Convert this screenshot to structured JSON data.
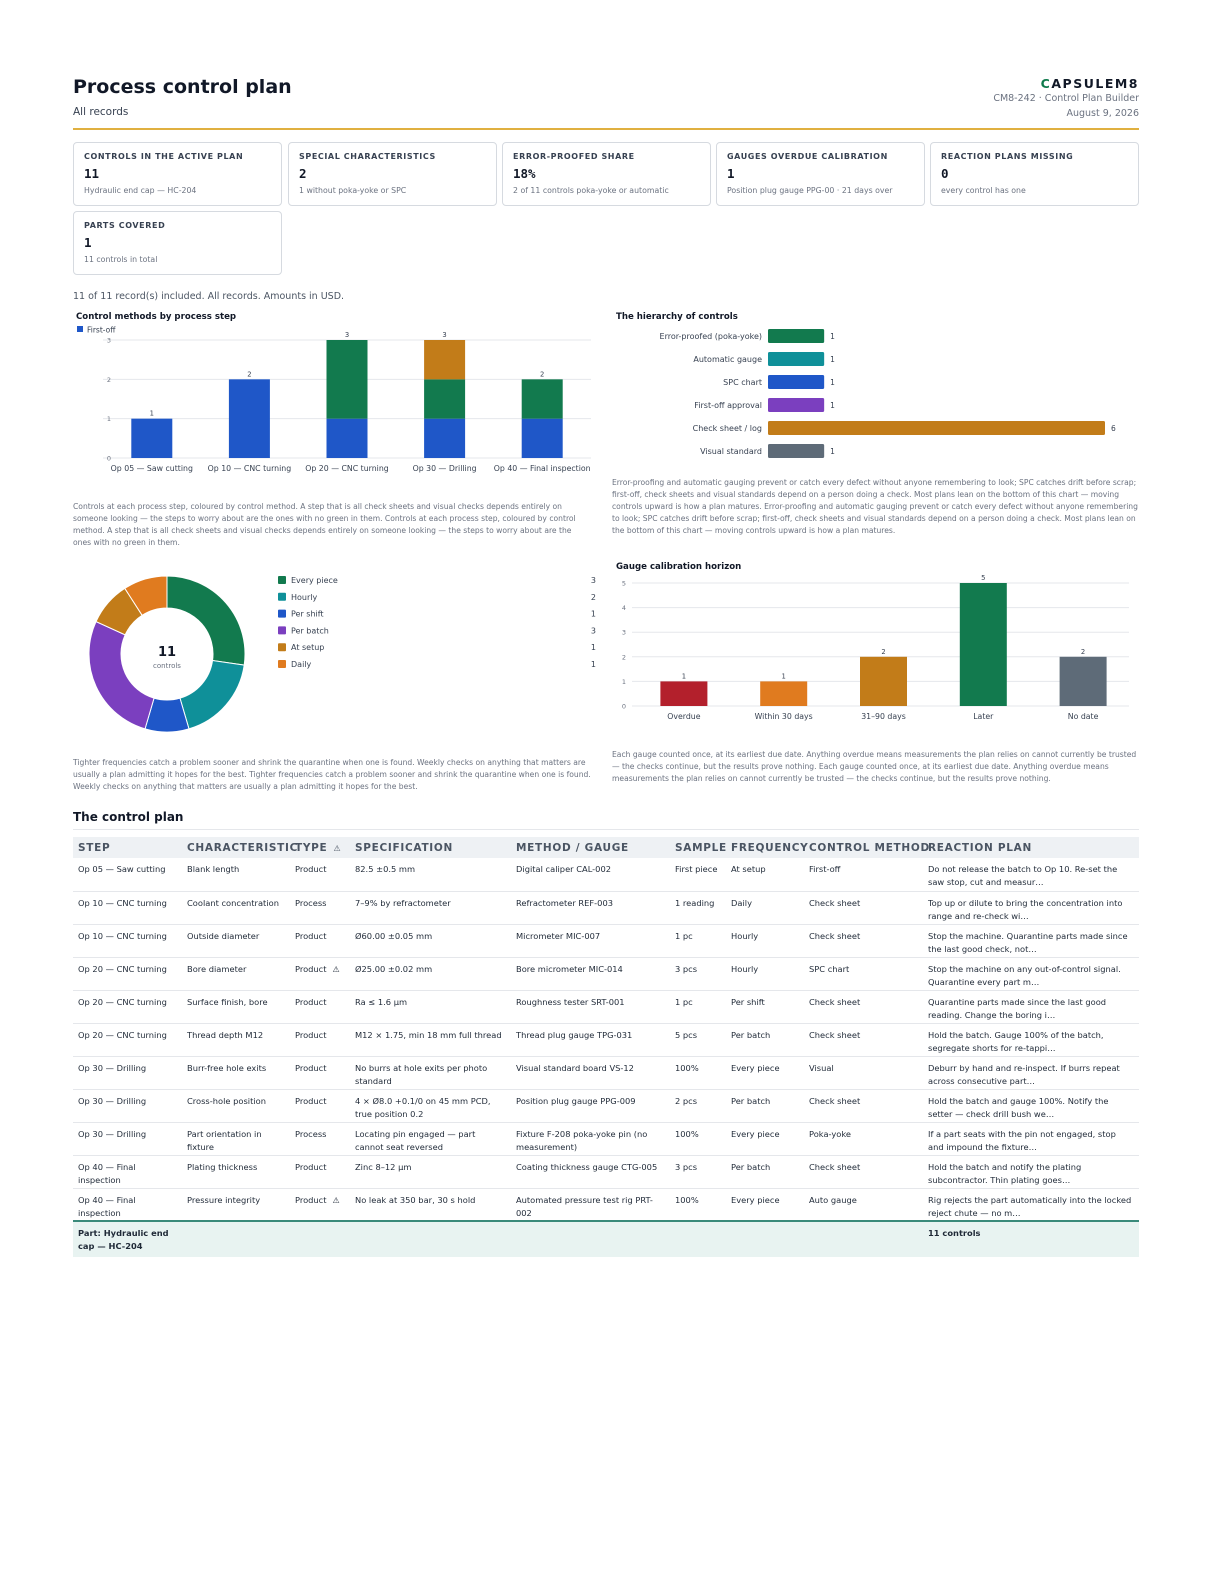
{
  "header": {
    "title": "Process control plan",
    "subtitle": "All records",
    "brand_prefix": "C",
    "brand_rest": "APSULEM8",
    "doc_ref": "CM8-242 · Control Plan Builder",
    "date": "August 9, 2026"
  },
  "kpis": [
    {
      "label": "CONTROLS IN THE ACTIVE PLAN",
      "value": "11",
      "note": "Hydraulic end cap — HC-204"
    },
    {
      "label": "SPECIAL CHARACTERISTICS",
      "value": "2",
      "note": "1 without poka-yoke or SPC"
    },
    {
      "label": "ERROR-PROOFED SHARE",
      "value": "18%",
      "note": "2 of 11 controls poka-yoke or automatic"
    },
    {
      "label": "GAUGES OVERDUE CALIBRATION",
      "value": "1",
      "note": "Position plug gauge PPG-00 · 21 days over"
    },
    {
      "label": "REACTION PLANS MISSING",
      "value": "0",
      "note": "every control has one"
    },
    {
      "label": "PARTS COVERED",
      "value": "1",
      "note": "11 controls in total"
    }
  ],
  "included_text": "11 of 11 record(s) included. All records. Amounts in USD.",
  "chart_data": [
    {
      "type": "bar",
      "stacked": true,
      "title": "Control methods by process step",
      "legend": "top-left",
      "categories": [
        "Op 05 — Saw cutting",
        "Op 10 — CNC turning",
        "Op 20 — CNC turning",
        "Op 30 — Drilling",
        "Op 40 — Final inspection"
      ],
      "series": [
        {
          "name": "First-off",
          "color": "#1f57c8",
          "values": [
            1,
            2,
            1,
            1,
            1
          ]
        },
        {
          "color": "#127a4e",
          "values": [
            0,
            0,
            2,
            1,
            1
          ]
        },
        {
          "color": "#c27c19",
          "values": [
            0,
            0,
            0,
            1,
            0
          ]
        }
      ],
      "totals": [
        1,
        2,
        3,
        3,
        2
      ],
      "yticks": [
        0,
        1,
        2,
        3
      ],
      "ylim": [
        0,
        3
      ],
      "grid": true
    },
    {
      "type": "bar",
      "orientation": "horizontal",
      "title": "The hierarchy of controls",
      "categories": [
        "Error-proofed (poka-yoke)",
        "Automatic gauge",
        "SPC chart",
        "First-off approval",
        "Check sheet / log",
        "Visual standard"
      ],
      "values": [
        1,
        1,
        1,
        1,
        6,
        1
      ],
      "colors": [
        "#127a4e",
        "#0f9099",
        "#1f57c8",
        "#7b3fbf",
        "#c27c19",
        "#5e6b78"
      ]
    },
    {
      "type": "pie",
      "donut": true,
      "center_value": "11",
      "center_label": "controls",
      "legend": "right",
      "labels": [
        "Every piece",
        "Hourly",
        "Per shift",
        "Per batch",
        "At setup",
        "Daily"
      ],
      "values": [
        3,
        2,
        1,
        3,
        1,
        1
      ],
      "colors": [
        "#127a4e",
        "#0f9099",
        "#1f57c8",
        "#7b3fbf",
        "#c27c19",
        "#e07b1f"
      ]
    },
    {
      "type": "bar",
      "title": "Gauge calibration horizon",
      "categories": [
        "Overdue",
        "Within 30 days",
        "31–90 days",
        "Later",
        "No date"
      ],
      "values": [
        1,
        1,
        2,
        5,
        2
      ],
      "colors": [
        "#b3202c",
        "#e07b1f",
        "#c27c19",
        "#127a4e",
        "#5e6b78"
      ],
      "yticks": [
        0,
        1,
        2,
        3,
        4,
        5
      ],
      "ylim": [
        0,
        5
      ],
      "grid": true
    }
  ],
  "notes": {
    "methods": "Controls at each process step, coloured by control method. A step that is all check sheets and visual checks depends entirely on someone looking — the steps to worry about are the ones with no green in them. Controls at each process step, coloured by control method. A step that is all check sheets and visual checks depends entirely on someone looking — the steps to worry about are the ones with no green in them.",
    "hierarchy": "Error-proofing and automatic gauging prevent or catch every defect without anyone remembering to look; SPC catches drift before scrap; first-off, check sheets and visual standards depend on a person doing a check. Most plans lean on the bottom of this chart — moving controls upward is how a plan matures. Error-proofing and automatic gauging prevent or catch every defect without anyone remembering to look; SPC catches drift before scrap; first-off, check sheets and visual standards depend on a person doing a check. Most plans lean on the bottom of this chart — moving controls upward is how a plan matures.",
    "frequency": "Tighter frequencies catch a problem sooner and shrink the quarantine when one is found. Weekly checks on anything that matters are usually a plan admitting it hopes for the best. Tighter frequencies catch a problem sooner and shrink the quarantine when one is found. Weekly checks on anything that matters are usually a plan admitting it hopes for the best.",
    "calibration": "Each gauge counted once, at its earliest due date. Anything overdue means measurements the plan relies on cannot currently be trusted — the checks continue, but the results prove nothing. Each gauge counted once, at its earliest due date. Anything overdue means measurements the plan relies on cannot currently be trusted — the checks continue, but the results prove nothing."
  },
  "table": {
    "title": "The control plan",
    "warn_symbol": "⚠",
    "headers": [
      "STEP",
      "CHARACTERISTIC",
      "TYPE",
      "SPECIFICATION",
      "METHOD / GAUGE",
      "SAMPLE",
      "FREQUENCY",
      "CONTROL METHOD",
      "REACTION PLAN"
    ],
    "rows": [
      [
        "Op 05 — Saw cutting",
        "Blank length",
        "Product",
        "82.5 ±0.5 mm",
        "Digital caliper CAL-002",
        "First piece",
        "At setup",
        "First-off",
        "Do not release the batch to Op 10. Re-set the saw stop, cut and measur…"
      ],
      [
        "Op 10 — CNC turning",
        "Coolant concentration",
        "Process",
        "7–9% by refractometer",
        "Refractometer REF-003",
        "1 reading",
        "Daily",
        "Check sheet",
        "Top up or dilute to bring the concentration into range and re-check wi…"
      ],
      [
        "Op 10 — CNC turning",
        "Outside diameter",
        "Product",
        "Ø60.00 ±0.05 mm",
        "Micrometer MIC-007",
        "1 pc",
        "Hourly",
        "Check sheet",
        "Stop the machine. Quarantine parts made since the last good check, not…"
      ],
      [
        "Op 20 — CNC turning",
        "Bore diameter",
        "Product",
        "Ø25.00 ±0.02 mm",
        "Bore micrometer MIC-014",
        "3 pcs",
        "Hourly",
        "SPC chart",
        "Stop the machine on any out-of-control signal. Quarantine every part m…"
      ],
      [
        "Op 20 — CNC turning",
        "Surface finish, bore",
        "Product",
        "Ra ≤ 1.6 µm",
        "Roughness tester SRT-001",
        "1 pc",
        "Per shift",
        "Check sheet",
        "Quarantine parts made since the last good reading. Change the boring i…"
      ],
      [
        "Op 20 — CNC turning",
        "Thread depth M12",
        "Product",
        "M12 × 1.75, min 18 mm full thread",
        "Thread plug gauge TPG-031",
        "5 pcs",
        "Per batch",
        "Check sheet",
        "Hold the batch. Gauge 100% of the batch, segregate shorts for re-tappi…"
      ],
      [
        "Op 30 — Drilling",
        "Burr-free hole exits",
        "Product",
        "No burrs at hole exits per photo standard",
        "Visual standard board VS-12",
        "100%",
        "Every piece",
        "Visual",
        "Deburr by hand and re-inspect. If burrs repeat across consecutive part…"
      ],
      [
        "Op 30 — Drilling",
        "Cross-hole position",
        "Product",
        "4 × Ø8.0 +0.1/0 on 45 mm PCD, true position 0.2",
        "Position plug gauge PPG-009",
        "2 pcs",
        "Per batch",
        "Check sheet",
        "Hold the batch and gauge 100%. Notify the setter — check drill bush we…"
      ],
      [
        "Op 30 — Drilling",
        "Part orientation in fixture",
        "Process",
        "Locating pin engaged — part cannot seat reversed",
        "Fixture F-208 poka-yoke pin (no measurement)",
        "100%",
        "Every piece",
        "Poka-yoke",
        "If a part seats with the pin not engaged, stop and impound the fixture…"
      ],
      [
        "Op 40 — Final inspection",
        "Plating thickness",
        "Product",
        "Zinc 8–12 µm",
        "Coating thickness gauge CTG-005",
        "3 pcs",
        "Per batch",
        "Check sheet",
        "Hold the batch and notify the plating subcontractor. Thin plating goes…"
      ],
      [
        "Op 40 — Final inspection",
        "Pressure integrity",
        "Product",
        "No leak at 350 bar, 30 s hold",
        "Automated pressure test rig PRT-002",
        "100%",
        "Every piece",
        "Auto gauge",
        "Rig rejects the part automatically into the locked reject chute — no m…"
      ]
    ],
    "special_flags": [
      false,
      false,
      false,
      true,
      false,
      false,
      false,
      false,
      false,
      false,
      true
    ],
    "footer_part": "Part: Hydraulic end cap — HC-204",
    "footer_count": "11 controls"
  }
}
